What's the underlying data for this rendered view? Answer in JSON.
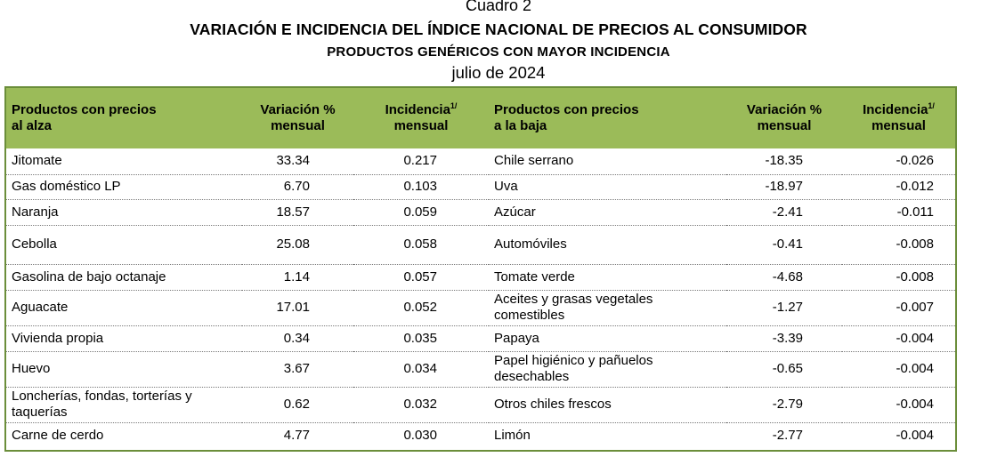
{
  "header": {
    "cuadro": "Cuadro 2",
    "title": "VARIACIÓN E INCIDENCIA DEL ÍNDICE NACIONAL DE PRECIOS AL CONSUMIDOR",
    "subtitle": "PRODUCTOS GENÉRICOS CON MAYOR INCIDENCIA",
    "date": "julio de 2024"
  },
  "table": {
    "columns": {
      "alza_line1": "Productos con precios",
      "alza_line2": "al alza",
      "var_line1": "Variación %",
      "var_line2": "mensual",
      "inc_line1": "Incidencia",
      "inc_sup": "1/",
      "inc_line2": "mensual",
      "baja_line1": "Productos con precios",
      "baja_line2": "a la baja",
      "var2_line1": "Variación %",
      "var2_line2": "mensual",
      "inc2_line1": "Incidencia",
      "inc2_sup": "1/",
      "inc2_line2": "mensual"
    },
    "rows": [
      {
        "alza": "Jitomate",
        "var_alza": "33.34",
        "inc_alza": "0.217",
        "baja": "Chile serrano",
        "var_baja": "-18.35",
        "inc_baja": "-0.026"
      },
      {
        "alza": "Gas doméstico LP",
        "var_alza": "6.70",
        "inc_alza": "0.103",
        "baja": "Uva",
        "var_baja": "-18.97",
        "inc_baja": "-0.012"
      },
      {
        "alza": "Naranja",
        "var_alza": "18.57",
        "inc_alza": "0.059",
        "baja": "Azúcar",
        "var_baja": "-2.41",
        "inc_baja": "-0.011"
      },
      {
        "alza": "Cebolla",
        "var_alza": "25.08",
        "inc_alza": "0.058",
        "baja": "Automóviles",
        "var_baja": "-0.41",
        "inc_baja": "-0.008"
      },
      {
        "alza": "Gasolina de bajo octanaje",
        "var_alza": "1.14",
        "inc_alza": "0.057",
        "baja": "Tomate verde",
        "var_baja": "-4.68",
        "inc_baja": "-0.008"
      },
      {
        "alza": "Aguacate",
        "var_alza": "17.01",
        "inc_alza": "0.052",
        "baja": "Aceites y grasas vegetales comestibles",
        "var_baja": "-1.27",
        "inc_baja": "-0.007"
      },
      {
        "alza": "Vivienda propia",
        "var_alza": "0.34",
        "inc_alza": "0.035",
        "baja": "Papaya",
        "var_baja": "-3.39",
        "inc_baja": "-0.004"
      },
      {
        "alza": "Huevo",
        "var_alza": "3.67",
        "inc_alza": "0.034",
        "baja": "Papel higiénico y pañuelos desechables",
        "var_baja": "-0.65",
        "inc_baja": "-0.004"
      },
      {
        "alza": "Loncherías, fondas, torterías y taquerías",
        "var_alza": "0.62",
        "inc_alza": "0.032",
        "baja": "Otros chiles frescos",
        "var_baja": "-2.79",
        "inc_baja": "-0.004"
      },
      {
        "alza": "Carne de cerdo",
        "var_alza": "4.77",
        "inc_alza": "0.030",
        "baja": "Limón",
        "var_baja": "-2.77",
        "inc_baja": "-0.004"
      }
    ]
  }
}
